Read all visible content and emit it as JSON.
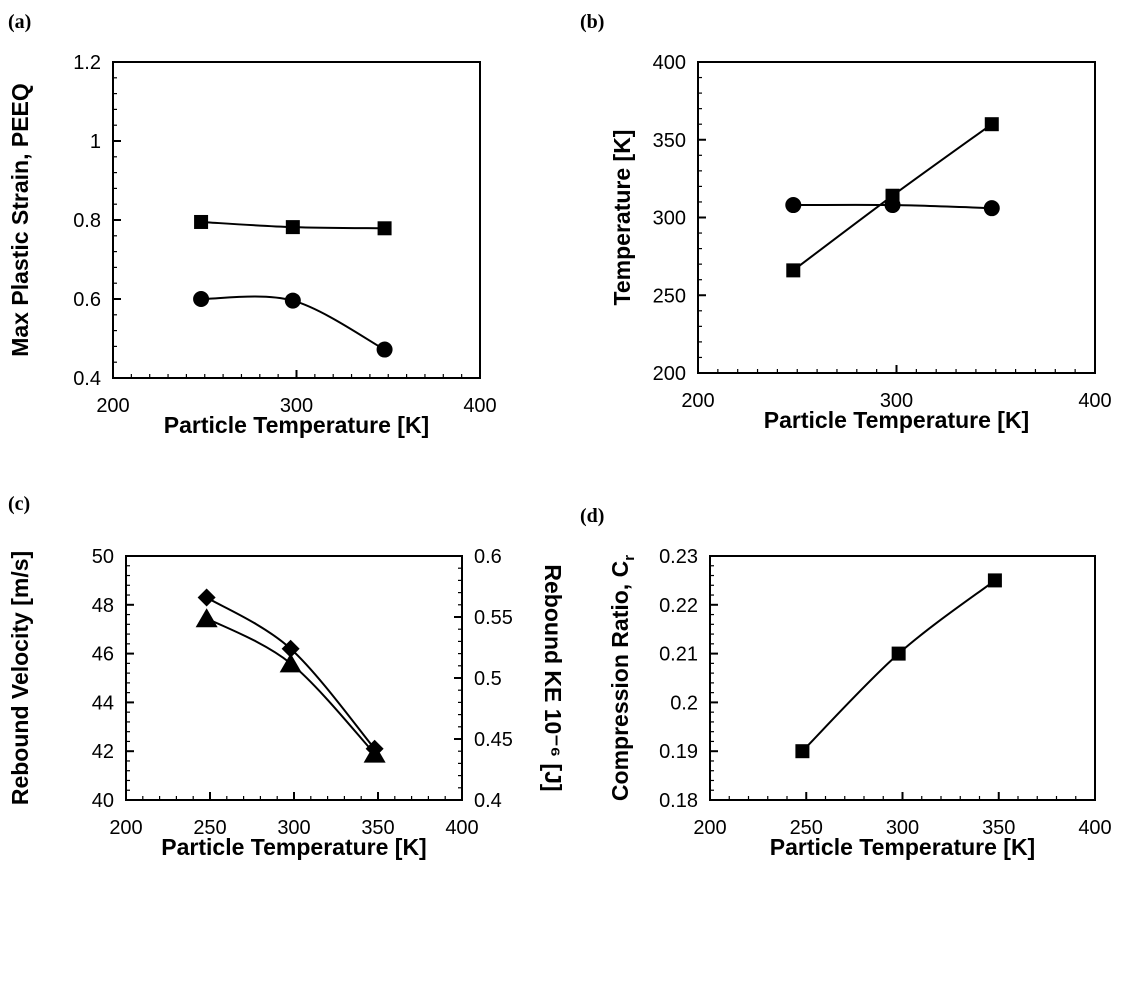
{
  "chart_data": [
    {
      "panel": "(a)",
      "type": "line",
      "xlabel": "Particle Temperature [K]",
      "ylabel": "Max Plastic Strain, PEEQ",
      "xlim": [
        200,
        400
      ],
      "ylim": [
        0.4,
        1.2
      ],
      "xticks": [
        "200",
        "300",
        "400"
      ],
      "yticks": [
        "0.4",
        "0.6",
        "0.8",
        "1",
        "1.2"
      ],
      "grid": false,
      "series": [
        {
          "marker": "square",
          "x": [
            248,
            298,
            348
          ],
          "y": [
            0.795,
            0.782,
            0.779
          ]
        },
        {
          "marker": "circle",
          "x": [
            248,
            298,
            348
          ],
          "y": [
            0.6,
            0.596,
            0.472
          ]
        }
      ]
    },
    {
      "panel": "(b)",
      "type": "line",
      "xlabel": "Particle Temperature [K]",
      "ylabel": "Temperature [K]",
      "xlim": [
        200,
        400
      ],
      "ylim": [
        200,
        400
      ],
      "xticks": [
        "200",
        "300",
        "400"
      ],
      "yticks": [
        "200",
        "250",
        "300",
        "350",
        "400"
      ],
      "grid": false,
      "series": [
        {
          "marker": "square",
          "x": [
            248,
            298,
            348
          ],
          "y": [
            266,
            314,
            360
          ]
        },
        {
          "marker": "circle",
          "x": [
            248,
            298,
            348
          ],
          "y": [
            308,
            308,
            306
          ]
        }
      ]
    },
    {
      "panel": "(c)",
      "type": "line",
      "xlabel": "Particle Temperature [K]",
      "ylabel": "Rebound Velocity [m/s]",
      "y2label": "Rebound KE 10⁻⁶ [J]",
      "xlim": [
        200,
        400
      ],
      "ylim": [
        40,
        50
      ],
      "y2lim": [
        0.4,
        0.6
      ],
      "xticks": [
        "200",
        "250",
        "300",
        "350",
        "400"
      ],
      "yticks": [
        "40",
        "42",
        "44",
        "46",
        "48",
        "50"
      ],
      "y2ticks": [
        "0.4",
        "0.45",
        "0.5",
        "0.55",
        "0.6"
      ],
      "grid": false,
      "series": [
        {
          "marker": "diamond",
          "axis": "left",
          "x": [
            248,
            298,
            348
          ],
          "y": [
            48.3,
            46.2,
            42.1
          ]
        },
        {
          "marker": "triangle",
          "axis": "right",
          "x": [
            248,
            298,
            348
          ],
          "y": [
            0.549,
            0.512,
            0.438
          ]
        }
      ]
    },
    {
      "panel": "(d)",
      "type": "line",
      "xlabel": "Particle Temperature [K]",
      "ylabel": "Compression Ratio, C",
      "ylabel_sub": "r",
      "xlim": [
        200,
        400
      ],
      "ylim": [
        0.18,
        0.23
      ],
      "xticks": [
        "200",
        "250",
        "300",
        "350",
        "400"
      ],
      "yticks": [
        "0.18",
        "0.19",
        "0.2",
        "0.21",
        "0.22",
        "0.23"
      ],
      "grid": false,
      "series": [
        {
          "marker": "square",
          "x": [
            248,
            298,
            348
          ],
          "y": [
            0.19,
            0.21,
            0.225
          ]
        }
      ]
    }
  ]
}
